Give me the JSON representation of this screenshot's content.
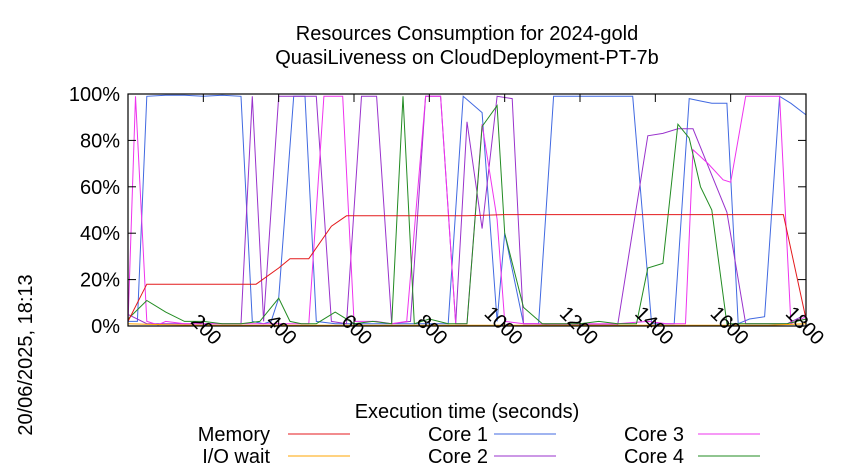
{
  "chart_data": {
    "type": "line",
    "title": [
      "Resources Consumption for 2024-gold",
      "QuasiLiveness on CloudDeployment-PT-7b"
    ],
    "xlabel": "Execution time (seconds)",
    "ylabel": "",
    "side_label": "20/06/2025, 18:13",
    "xlim": [
      0,
      1800
    ],
    "ylim": [
      0,
      100
    ],
    "xticks": [
      200,
      400,
      600,
      800,
      1000,
      1200,
      1400,
      1600,
      1800
    ],
    "xtick_labels": [
      "200",
      "400",
      "600",
      "800",
      "1000",
      "1200",
      "1400",
      "1600",
      "1800"
    ],
    "yticks": [
      0,
      20,
      40,
      60,
      80,
      100
    ],
    "ytick_labels": [
      "0%",
      "20%",
      "40%",
      "60%",
      "80%",
      "100%"
    ],
    "legend_position": "bottom",
    "series": [
      {
        "name": "Memory",
        "color": "#e41a1c",
        "x": [
          0,
          50,
          100,
          200,
          300,
          340,
          400,
          430,
          480,
          540,
          580,
          620,
          700,
          800,
          900,
          1000,
          1100,
          1200,
          1300,
          1400,
          1500,
          1600,
          1700,
          1740,
          1800
        ],
        "y": [
          2,
          18,
          18,
          18,
          18,
          18,
          25,
          29,
          29,
          43,
          47.5,
          47.5,
          47.5,
          47.5,
          47.5,
          48,
          48,
          48,
          48,
          48,
          48,
          48,
          48,
          48,
          3
        ]
      },
      {
        "name": "I/O wait",
        "color": "#ffa500",
        "x": [
          0,
          100,
          200,
          300,
          400,
          500,
          600,
          700,
          800,
          900,
          1000,
          1100,
          1200,
          1300,
          1400,
          1500,
          1600,
          1700,
          1800
        ],
        "y": [
          1,
          0.5,
          0.3,
          0.3,
          0.3,
          0.3,
          0.3,
          0.3,
          0.3,
          0.3,
          0.3,
          0.3,
          0.3,
          0.3,
          0.3,
          0.3,
          0.3,
          0.3,
          1
        ]
      },
      {
        "name": "Core 1",
        "color": "#4169e1",
        "x": [
          0,
          25,
          50,
          100,
          150,
          200,
          250,
          300,
          330,
          360,
          380,
          400,
          440,
          470,
          500,
          550,
          600,
          650,
          700,
          750,
          800,
          850,
          890,
          940,
          980,
          1000,
          1050,
          1090,
          1130,
          1200,
          1250,
          1300,
          1340,
          1390,
          1420,
          1450,
          1490,
          1520,
          1550,
          1590,
          1620,
          1650,
          1690,
          1730,
          1760,
          1800
        ],
        "y": [
          2,
          2,
          99,
          99.5,
          99.5,
          99,
          99.5,
          99,
          2,
          1,
          2,
          12,
          99,
          99,
          2,
          1,
          1,
          1,
          1,
          1,
          1,
          1,
          99,
          92,
          2,
          40,
          1,
          1,
          99,
          99,
          99,
          99,
          99,
          1,
          1,
          1,
          98,
          97,
          96,
          96,
          1,
          3,
          4,
          99,
          96,
          91
        ]
      },
      {
        "name": "Core 2",
        "color": "#9932cc",
        "x": [
          0,
          50,
          100,
          200,
          300,
          330,
          360,
          400,
          440,
          470,
          500,
          540,
          580,
          620,
          660,
          700,
          750,
          790,
          830,
          870,
          900,
          940,
          980,
          1020,
          1050,
          1080,
          1120,
          1150,
          1200,
          1300,
          1380,
          1420,
          1460,
          1500,
          1550,
          1590,
          1640,
          1700,
          1750,
          1800
        ],
        "y": [
          5,
          1,
          1,
          1,
          1,
          99,
          2,
          99,
          99,
          99,
          99,
          2,
          1,
          99,
          99,
          1,
          2,
          99,
          99,
          1,
          88,
          42,
          99,
          98,
          1,
          1,
          0.5,
          0.5,
          0.5,
          0.5,
          82,
          83,
          85,
          85,
          65,
          49,
          1,
          1,
          1,
          5
        ]
      },
      {
        "name": "Core 3",
        "color": "#ee33ee",
        "x": [
          0,
          20,
          50,
          80,
          100,
          150,
          200,
          250,
          300,
          350,
          400,
          440,
          480,
          520,
          540,
          570,
          600,
          620,
          660,
          700,
          740,
          790,
          830,
          870,
          900,
          940,
          980,
          1000,
          1050,
          1100,
          1200,
          1300,
          1380,
          1430,
          1480,
          1500,
          1540,
          1580,
          1600,
          1640,
          1690,
          1730,
          1760,
          1800
        ],
        "y": [
          1,
          99,
          2,
          0.5,
          2,
          1,
          1,
          1,
          1,
          1,
          1,
          1,
          1,
          99,
          99,
          99,
          2,
          2,
          2,
          1,
          2,
          99,
          99,
          1,
          1,
          87,
          46,
          2,
          1,
          1,
          1,
          1,
          2,
          1,
          1,
          76,
          70,
          63,
          62,
          99,
          99,
          99,
          1,
          4
        ]
      },
      {
        "name": "Core 4",
        "color": "#228b22",
        "x": [
          0,
          50,
          100,
          150,
          200,
          250,
          300,
          350,
          400,
          430,
          460,
          500,
          550,
          600,
          650,
          700,
          730,
          760,
          800,
          850,
          900,
          940,
          980,
          1000,
          1050,
          1100,
          1150,
          1200,
          1250,
          1300,
          1350,
          1380,
          1420,
          1460,
          1490,
          1520,
          1550,
          1590,
          1620,
          1660,
          1700,
          1750,
          1800
        ],
        "y": [
          3,
          11,
          6,
          2,
          2,
          1,
          1,
          2,
          12,
          2,
          1,
          1,
          6,
          1,
          2,
          1,
          99,
          1,
          3,
          1,
          1,
          86,
          95,
          40,
          8,
          1,
          1,
          1,
          2,
          1,
          1,
          25,
          27,
          87,
          81,
          60,
          50,
          1,
          1,
          1,
          1,
          1,
          3
        ]
      }
    ]
  }
}
